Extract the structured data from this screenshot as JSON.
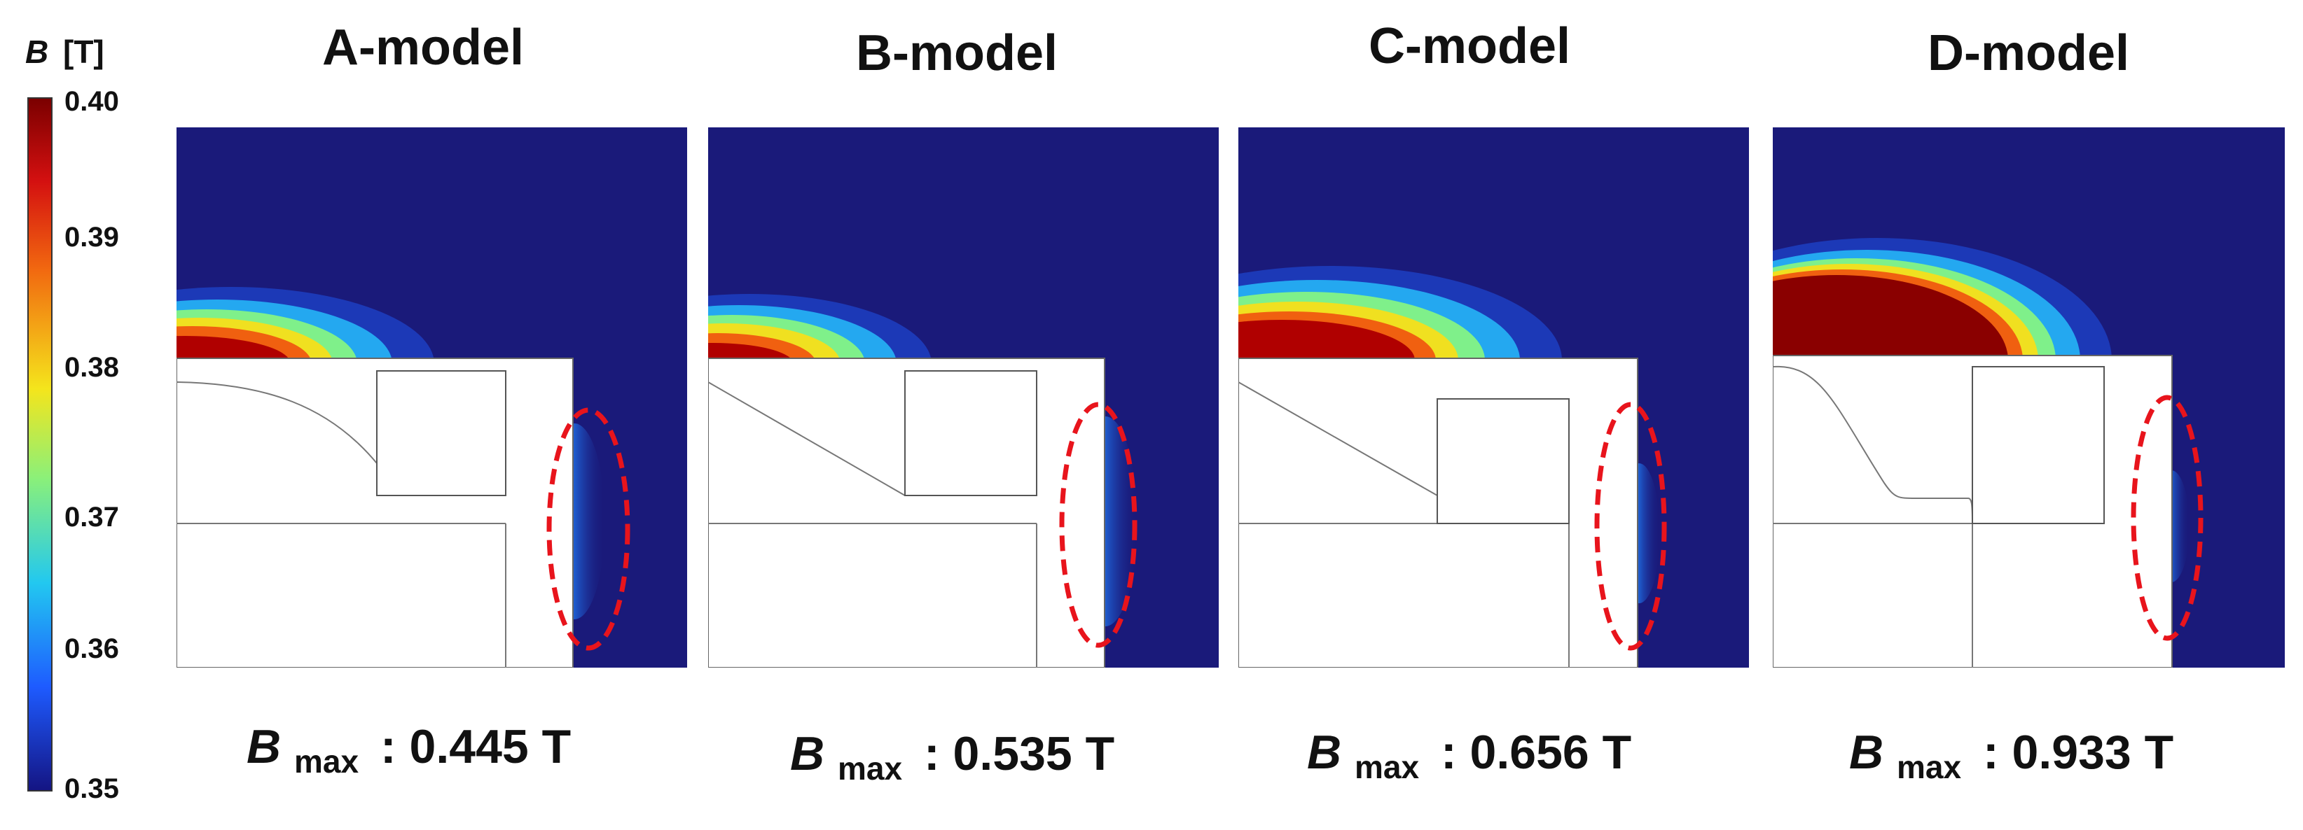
{
  "colorbar": {
    "symbol": "B",
    "unit": "[T]",
    "ticks": [
      "0.40",
      "0.39",
      "0.38",
      "0.37",
      "0.36",
      "0.35"
    ],
    "min": 0.35,
    "max": 0.4
  },
  "panels": [
    {
      "title": "A-model",
      "bmax_symbol": "B",
      "bmax_sub": "max",
      "bmax_text": ": 0.445 T"
    },
    {
      "title": "B-model",
      "bmax_symbol": "B",
      "bmax_sub": "max",
      "bmax_text": ": 0.535 T"
    },
    {
      "title": "C-model",
      "bmax_symbol": "B",
      "bmax_sub": "max",
      "bmax_text": ": 0.656 T"
    },
    {
      "title": "D-model",
      "bmax_symbol": "B",
      "bmax_sub": "max",
      "bmax_text": ": 0.933 T"
    }
  ],
  "colors": {
    "field_background": "#1a1a7a",
    "highlight_ellipse": "#e8141c",
    "colormap": [
      "#00008f",
      "#0050ff",
      "#00d0ff",
      "#7fff80",
      "#ffe000",
      "#ff5000",
      "#8a0000"
    ]
  }
}
